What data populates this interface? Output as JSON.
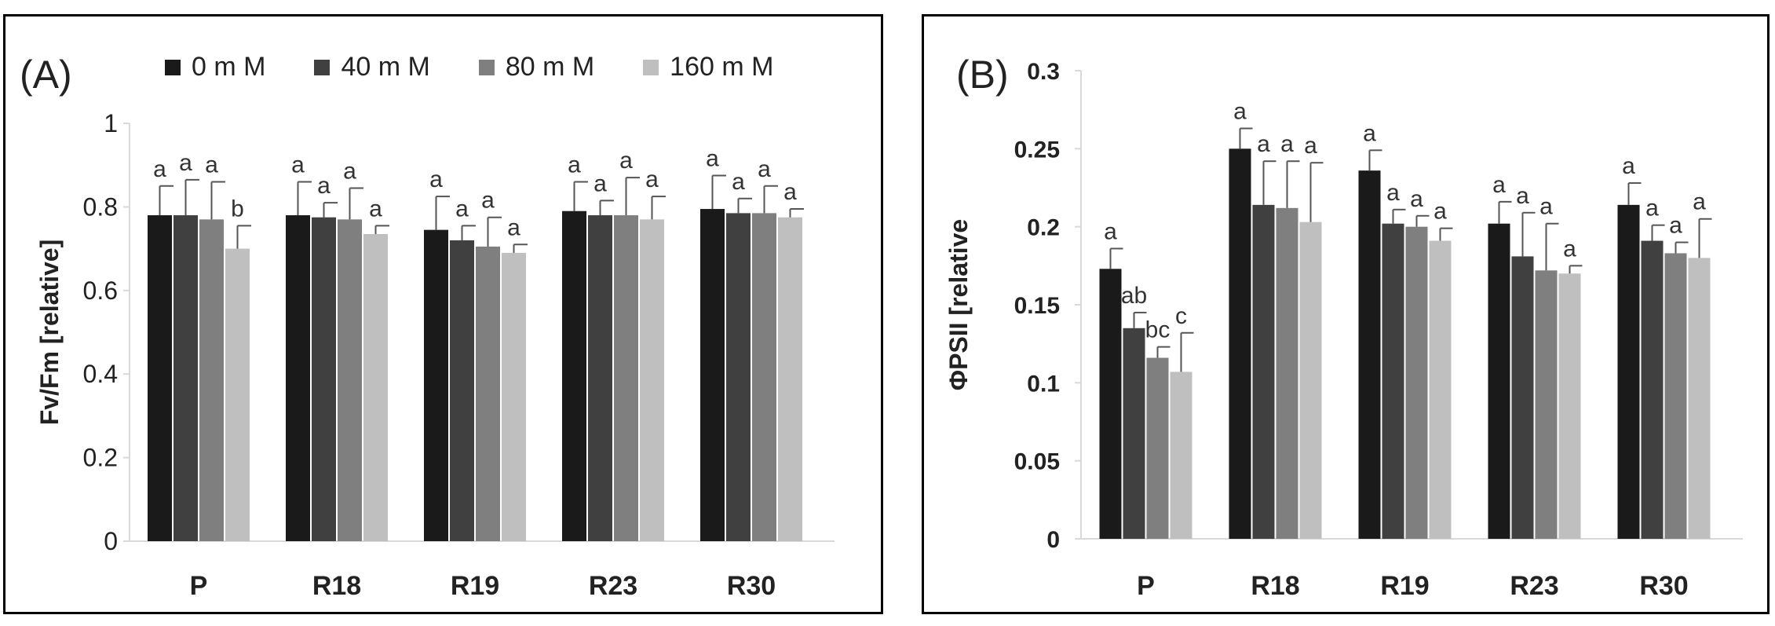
{
  "colors": {
    "s0": "#1a1a1a",
    "s1": "#404040",
    "s2": "#7f7f7f",
    "s3": "#bfbfbf",
    "axis": "#d9d9d9",
    "text": "#222222"
  },
  "legend": {
    "items": [
      "0 m M",
      "40 m M",
      "80 m M",
      "160 m M"
    ]
  },
  "chart_data": [
    {
      "type": "bar",
      "panel_label": "(A)",
      "title": "",
      "xlabel": "",
      "ylabel": "Fv/Fm [relative]",
      "ylim": [
        0,
        1
      ],
      "yticks": [
        "0",
        "0.2",
        "0.4",
        "0.6",
        "0.8",
        "1"
      ],
      "ytick_values": [
        0,
        0.2,
        0.4,
        0.6,
        0.8,
        1
      ],
      "categories": [
        "P",
        "R18",
        "R19",
        "R23",
        "R30"
      ],
      "series": [
        {
          "name": "0 m M",
          "values": [
            0.78,
            0.78,
            0.745,
            0.79,
            0.795
          ],
          "errors": [
            0.07,
            0.08,
            0.08,
            0.07,
            0.08
          ],
          "letters": [
            "a",
            "a",
            "a",
            "a",
            "a"
          ]
        },
        {
          "name": "40 m M",
          "values": [
            0.78,
            0.775,
            0.72,
            0.78,
            0.785
          ],
          "errors": [
            0.085,
            0.035,
            0.035,
            0.035,
            0.035
          ],
          "letters": [
            "a",
            "a",
            "a",
            "a",
            "a"
          ]
        },
        {
          "name": "80 m M",
          "values": [
            0.77,
            0.77,
            0.705,
            0.78,
            0.785
          ],
          "errors": [
            0.09,
            0.075,
            0.07,
            0.09,
            0.065
          ],
          "letters": [
            "a",
            "a",
            "a",
            "a",
            "a"
          ]
        },
        {
          "name": "160 m M",
          "values": [
            0.7,
            0.735,
            0.69,
            0.77,
            0.775
          ],
          "errors": [
            0.055,
            0.02,
            0.02,
            0.055,
            0.02
          ],
          "letters": [
            "b",
            "a",
            "a",
            "a",
            "a"
          ]
        }
      ]
    },
    {
      "type": "bar",
      "panel_label": "(B)",
      "title": "",
      "xlabel": "",
      "ylabel": "ΦPSII [relative",
      "ylim": [
        0,
        0.3
      ],
      "yticks": [
        "0",
        "0.05",
        "0.1",
        "0.15",
        "0.2",
        "0.25",
        "0.3"
      ],
      "ytick_values": [
        0,
        0.05,
        0.1,
        0.15,
        0.2,
        0.25,
        0.3
      ],
      "categories": [
        "P",
        "R18",
        "R19",
        "R23",
        "R30"
      ],
      "series": [
        {
          "name": "0 m M",
          "values": [
            0.173,
            0.25,
            0.236,
            0.202,
            0.214
          ],
          "errors": [
            0.013,
            0.013,
            0.013,
            0.014,
            0.014
          ],
          "letters": [
            "a",
            "a",
            "a",
            "a",
            "a"
          ]
        },
        {
          "name": "40 m M",
          "values": [
            0.135,
            0.214,
            0.202,
            0.181,
            0.191
          ],
          "errors": [
            0.01,
            0.028,
            0.009,
            0.028,
            0.01
          ],
          "letters": [
            "ab",
            "a",
            "a",
            "a",
            "a"
          ]
        },
        {
          "name": "80 m M",
          "values": [
            0.116,
            0.212,
            0.2,
            0.172,
            0.183
          ],
          "errors": [
            0.007,
            0.03,
            0.007,
            0.03,
            0.007
          ],
          "letters": [
            "bc",
            "a",
            "a",
            "a",
            "a"
          ]
        },
        {
          "name": "160 m M",
          "values": [
            0.107,
            0.203,
            0.191,
            0.17,
            0.18
          ],
          "errors": [
            0.025,
            0.038,
            0.008,
            0.005,
            0.025
          ],
          "letters": [
            "c",
            "a",
            "a",
            "a",
            "a"
          ]
        }
      ]
    }
  ]
}
